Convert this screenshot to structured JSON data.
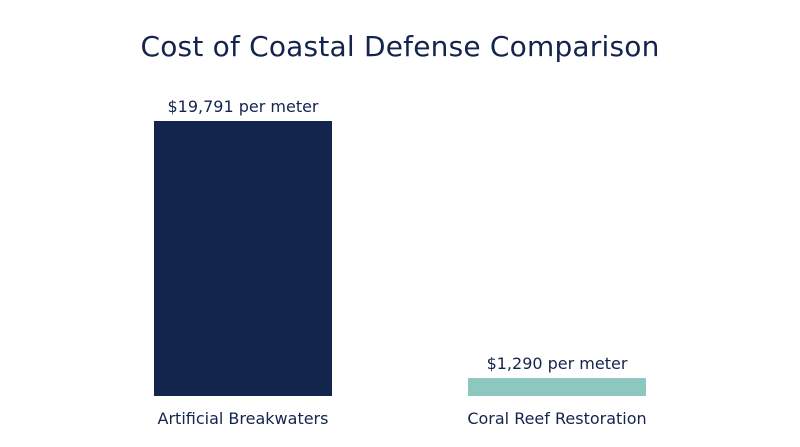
{
  "chart_data": {
    "type": "bar",
    "title": "Cost of Coastal Defense Comparison",
    "xlabel": "",
    "ylabel": "",
    "grid": false,
    "categories": [
      "Artificial Breakwaters",
      "Coral Reef Restoration"
    ],
    "values": [
      19791,
      1290
    ],
    "data_labels": [
      "$19,791 per meter",
      "$1,290 per meter"
    ],
    "colors": [
      "#13244d",
      "#8cc8bf"
    ],
    "ylim": [
      0,
      19791
    ]
  }
}
